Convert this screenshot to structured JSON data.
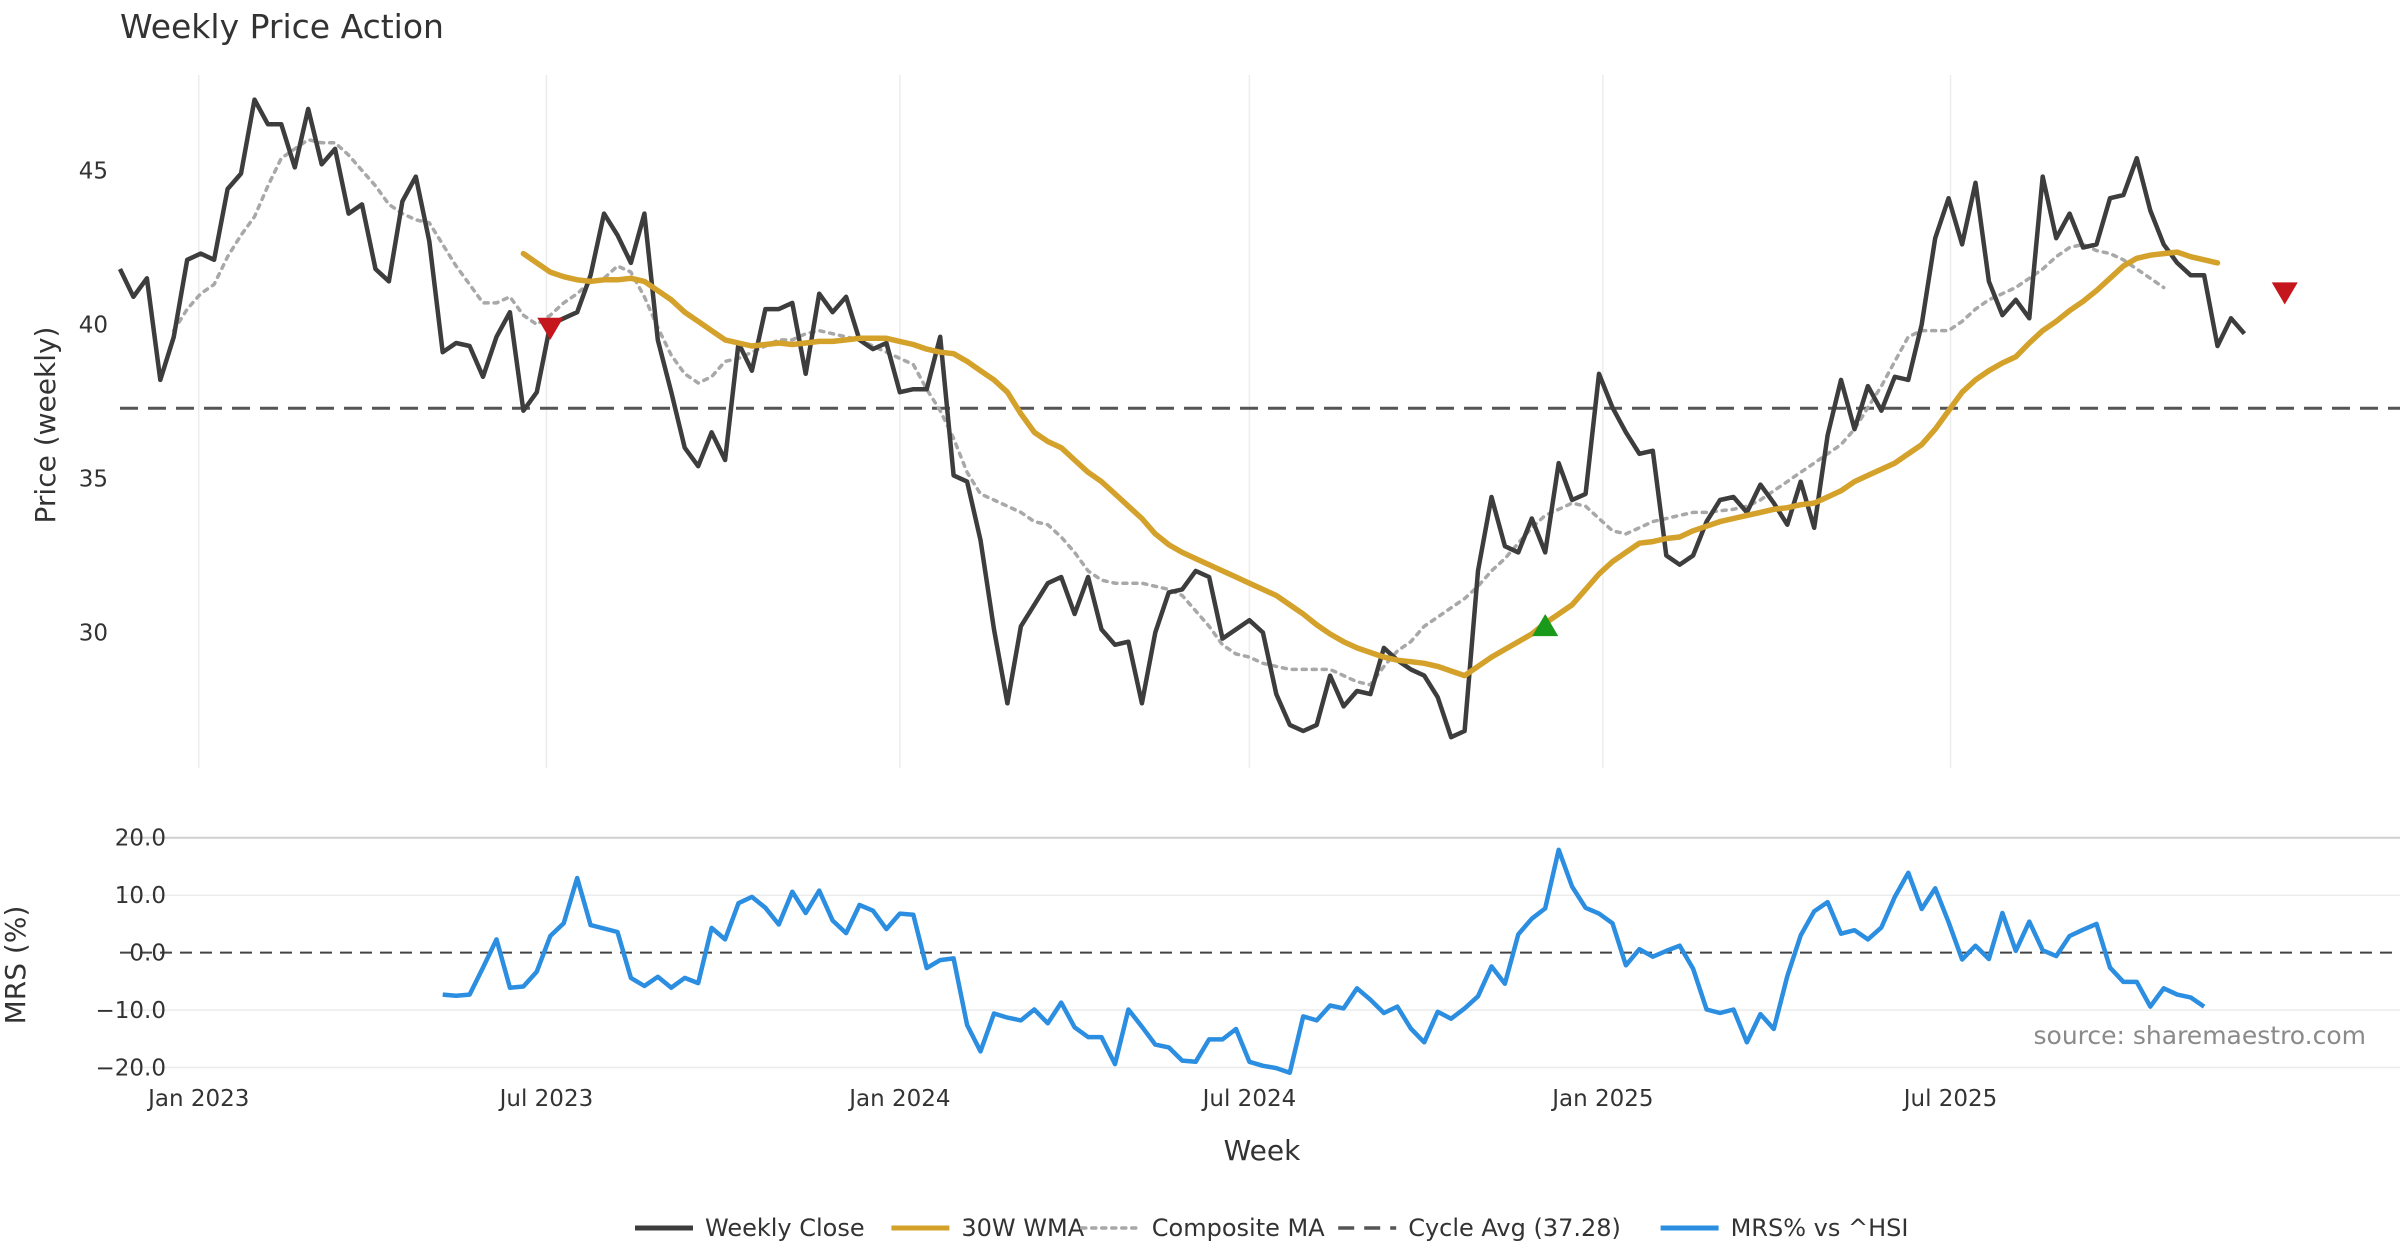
{
  "chart_data": [
    {
      "type": "line",
      "title": "Weekly Price Action",
      "xlabel": "",
      "ylabel": "Price (weekly)",
      "ylim": [
        25.6,
        48.1
      ],
      "yticks": [
        30,
        35,
        40,
        45
      ],
      "x_start": "2022-11-21",
      "x_end": "2025-10-20",
      "x_axis_range": [
        "2022-11-21",
        "2026-02-20"
      ],
      "xtick_labels": [
        "Jan 2023",
        "Jul 2023",
        "Jan 2024",
        "Jul 2024",
        "Jan 2025",
        "Jul 2025"
      ],
      "xtick_dates": [
        "2023-01-01",
        "2023-07-01",
        "2024-01-01",
        "2024-07-01",
        "2025-01-01",
        "2025-07-01"
      ],
      "series": [
        {
          "name": "Weekly Close",
          "color": "#3d3d3d",
          "start_index": 0,
          "values": [
            41.8,
            40.9,
            41.5,
            38.2,
            39.6,
            42.1,
            42.3,
            42.1,
            44.4,
            44.9,
            47.3,
            46.5,
            46.5,
            45.1,
            47.0,
            45.2,
            45.7,
            43.6,
            43.9,
            41.8,
            41.4,
            44.0,
            44.8,
            42.7,
            39.1,
            39.4,
            39.3,
            38.3,
            39.6,
            40.4,
            37.2,
            37.8,
            40.0,
            40.2,
            40.4,
            41.6,
            43.6,
            42.9,
            42.0,
            43.6,
            39.5,
            37.8,
            36.0,
            35.4,
            36.5,
            35.6,
            39.4,
            38.5,
            40.5,
            40.5,
            40.7,
            38.4,
            41.0,
            40.4,
            40.9,
            39.5,
            39.2,
            39.4,
            37.8,
            37.9,
            37.9,
            39.6,
            35.1,
            34.9,
            33.0,
            30.1,
            27.7,
            30.2,
            30.9,
            31.6,
            31.8,
            30.6,
            31.8,
            30.1,
            29.6,
            29.7,
            27.7,
            30.0,
            31.3,
            31.4,
            32.0,
            31.8,
            29.8,
            30.1,
            30.4,
            30.0,
            28.0,
            27.0,
            26.8,
            27.0,
            28.6,
            27.6,
            28.1,
            28.0,
            29.5,
            29.1,
            28.8,
            28.6,
            27.9,
            26.6,
            26.8,
            32.0,
            34.4,
            32.8,
            32.6,
            33.7,
            32.6,
            35.5,
            34.3,
            34.5,
            38.4,
            37.3,
            36.5,
            35.8,
            35.9,
            32.5,
            32.2,
            32.5,
            33.6,
            34.3,
            34.4,
            33.9,
            34.8,
            34.2,
            33.5,
            34.9,
            33.4,
            36.4,
            38.2,
            36.6,
            38.0,
            37.2,
            38.3,
            38.2,
            40.0,
            42.8,
            44.1,
            42.6,
            44.6,
            41.4,
            40.3,
            40.8,
            40.2,
            44.8,
            42.8,
            43.6,
            42.5,
            42.6,
            44.1,
            44.2,
            45.4,
            43.7,
            42.6,
            42.0,
            41.6,
            41.6,
            39.3,
            40.2,
            39.7
          ]
        },
        {
          "name": "30W WMA",
          "color": "#d4a12a",
          "start_index": 30,
          "values": [
            42.3,
            42.0,
            41.7,
            41.55,
            41.45,
            41.4,
            41.45,
            41.45,
            41.5,
            41.4,
            41.1,
            40.8,
            40.4,
            40.1,
            39.8,
            39.5,
            39.4,
            39.3,
            39.35,
            39.4,
            39.35,
            39.4,
            39.45,
            39.45,
            39.5,
            39.55,
            39.55,
            39.55,
            39.45,
            39.35,
            39.2,
            39.1,
            39.05,
            38.8,
            38.5,
            38.2,
            37.8,
            37.1,
            36.5,
            36.2,
            36.0,
            35.6,
            35.2,
            34.9,
            34.5,
            34.1,
            33.7,
            33.2,
            32.85,
            32.6,
            32.4,
            32.2,
            32.0,
            31.8,
            31.6,
            31.4,
            31.2,
            30.9,
            30.6,
            30.25,
            29.95,
            29.7,
            29.5,
            29.35,
            29.2,
            29.1,
            29.05,
            29.0,
            28.9,
            28.75,
            28.6,
            28.9,
            29.2,
            29.45,
            29.7,
            29.95,
            30.3,
            30.6,
            30.9,
            31.4,
            31.9,
            32.3,
            32.6,
            32.9,
            32.95,
            33.05,
            33.1,
            33.3,
            33.45,
            33.6,
            33.7,
            33.8,
            33.9,
            34.0,
            34.05,
            34.15,
            34.2,
            34.4,
            34.6,
            34.9,
            35.1,
            35.3,
            35.5,
            35.8,
            36.1,
            36.6,
            37.2,
            37.8,
            38.2,
            38.5,
            38.75,
            38.95,
            39.4,
            39.8,
            40.1,
            40.45,
            40.75,
            41.1,
            41.5,
            41.9,
            42.15,
            42.25,
            42.3,
            42.35,
            42.2,
            42.1,
            42.0
          ]
        },
        {
          "name": "Composite MA",
          "color": "#a8a8a8",
          "start_index": 4,
          "values": [
            39.8,
            40.5,
            41.0,
            41.3,
            42.2,
            42.9,
            43.5,
            44.5,
            45.4,
            45.7,
            46.0,
            45.9,
            45.9,
            45.5,
            45.0,
            44.5,
            43.9,
            43.6,
            43.4,
            43.3,
            42.6,
            41.9,
            41.3,
            40.7,
            40.7,
            40.9,
            40.3,
            40.0,
            40.3,
            40.7,
            41.0,
            41.4,
            41.5,
            41.9,
            41.7,
            40.9,
            39.9,
            39.0,
            38.4,
            38.1,
            38.3,
            38.8,
            38.9,
            39.1,
            39.3,
            39.5,
            39.5,
            39.7,
            39.8,
            39.7,
            39.6,
            39.5,
            39.3,
            39.1,
            38.9,
            38.7,
            37.9,
            37.2,
            36.3,
            35.2,
            34.5,
            34.3,
            34.1,
            33.9,
            33.6,
            33.5,
            33.1,
            32.6,
            32.0,
            31.7,
            31.6,
            31.6,
            31.6,
            31.5,
            31.4,
            31.2,
            30.7,
            30.2,
            29.6,
            29.3,
            29.2,
            29.0,
            28.9,
            28.8,
            28.8,
            28.8,
            28.8,
            28.6,
            28.4,
            28.3,
            28.9,
            29.4,
            29.7,
            30.2,
            30.5,
            30.8,
            31.1,
            31.5,
            32.0,
            32.4,
            32.9,
            33.4,
            33.8,
            34.0,
            34.2,
            34.1,
            33.7,
            33.3,
            33.2,
            33.4,
            33.6,
            33.7,
            33.8,
            33.9,
            33.9,
            33.95,
            34.0,
            34.1,
            34.3,
            34.6,
            34.9,
            35.2,
            35.5,
            35.8,
            36.1,
            36.6,
            37.3,
            38.0,
            38.8,
            39.6,
            39.8,
            39.8,
            39.8,
            40.1,
            40.5,
            40.8,
            41.0,
            41.2,
            41.5,
            41.8,
            42.2,
            42.5,
            42.6,
            42.4,
            42.3,
            42.1,
            41.8,
            41.5,
            41.2
          ]
        },
        {
          "name": "Cycle Avg (37.28)",
          "color": "#555555",
          "value": 37.28
        }
      ],
      "markers": [
        {
          "type": "sell",
          "index": 32,
          "value": 39.9,
          "color": "#c4161c"
        },
        {
          "type": "buy",
          "index": 106,
          "value": 30.2,
          "color": "#1a9a1a"
        },
        {
          "type": "sell",
          "index": 161,
          "value": 41.05,
          "color": "#c4161c"
        }
      ]
    },
    {
      "type": "line",
      "ylabel": "MRS (%)",
      "xlabel": "Week",
      "ylim": [
        -21.3,
        21.0
      ],
      "yticks": [
        -20,
        -10,
        0,
        10,
        20
      ],
      "ytick_labels": [
        "−20.0",
        "−10.0",
        "0.0",
        "10.0",
        "20.0"
      ],
      "zero_line": 0,
      "series": [
        {
          "name": "MRS% vs ^HSI",
          "color": "#2b8ee0",
          "start_index": 24,
          "values": [
            -7.3,
            -7.5,
            -7.3,
            -2.6,
            2.3,
            -6.1,
            -5.9,
            -3.3,
            2.9,
            5.1,
            13.0,
            4.8,
            4.2,
            3.6,
            -4.4,
            -5.8,
            -4.2,
            -6.1,
            -4.4,
            -5.3,
            4.3,
            2.3,
            8.6,
            9.7,
            7.8,
            4.9,
            10.6,
            6.9,
            10.8,
            5.6,
            3.4,
            8.3,
            7.3,
            4.1,
            6.8,
            6.6,
            -2.7,
            -1.3,
            -1.0,
            -12.6,
            -17.2,
            -10.6,
            -11.3,
            -11.8,
            -9.9,
            -12.3,
            -8.7,
            -13.0,
            -14.7,
            -14.7,
            -19.4,
            -9.9,
            -12.9,
            -16.0,
            -16.5,
            -18.8,
            -19.0,
            -15.1,
            -15.1,
            -13.3,
            -19.0,
            -19.7,
            -20.1,
            -20.9,
            -11.1,
            -11.8,
            -9.2,
            -9.7,
            -6.2,
            -8.2,
            -10.5,
            -9.4,
            -13.2,
            -15.6,
            -10.3,
            -11.5,
            -9.7,
            -7.6,
            -2.4,
            -5.4,
            3.2,
            5.9,
            7.7,
            17.9,
            11.5,
            7.8,
            6.8,
            5.1,
            -2.2,
            0.6,
            -0.7,
            0.3,
            1.2,
            -2.8,
            -9.9,
            -10.5,
            -9.9,
            -15.6,
            -10.7,
            -13.3,
            -4.1,
            3.0,
            7.2,
            8.8,
            3.3,
            3.9,
            2.3,
            4.4,
            9.7,
            13.9,
            7.6,
            11.2,
            5.3,
            -1.2,
            1.2,
            -1.1,
            6.9,
            0.3,
            5.4,
            0.4,
            -0.6,
            2.9,
            4.0,
            5.0,
            -2.6,
            -5.1,
            -5.1,
            -9.4,
            -6.2,
            -7.3,
            -7.8,
            -9.4
          ]
        }
      ],
      "annotation": "source: sharemaestro.com"
    }
  ],
  "legend": {
    "position": "bottom-center",
    "items": [
      {
        "label": "Weekly Close",
        "color": "#3d3d3d",
        "style": "solid"
      },
      {
        "label": "30W WMA",
        "color": "#d4a12a",
        "style": "solid"
      },
      {
        "label": "Composite MA",
        "color": "#a8a8a8",
        "style": "dotted"
      },
      {
        "label": "Cycle Avg (37.28)",
        "color": "#555555",
        "style": "dashed"
      },
      {
        "label": "MRS% vs ^HSI",
        "color": "#2b8ee0",
        "style": "solid"
      }
    ]
  }
}
